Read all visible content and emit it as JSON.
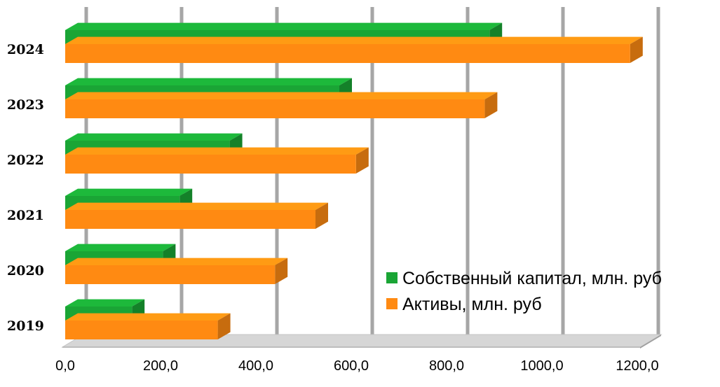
{
  "chart_data": {
    "type": "bar",
    "orientation": "horizontal",
    "style": "3d",
    "categories": [
      "2019",
      "2020",
      "2021",
      "2022",
      "2023",
      "2024"
    ],
    "series": [
      {
        "name": "Собственный капитал, млн. руб",
        "color": "#1aa535",
        "values": [
          140,
          205,
          240,
          345,
          575,
          890
        ]
      },
      {
        "name": "Активы, млн. руб",
        "color": "#ff8a12",
        "values": [
          320,
          440,
          525,
          610,
          880,
          1185
        ]
      }
    ],
    "x_ticks": [
      "0,0",
      "200,0",
      "400,0",
      "600,0",
      "800,0",
      "1000,0",
      "1200,0"
    ],
    "xlim": [
      0,
      1200
    ],
    "grid": true,
    "legend_position": "bottom-right"
  }
}
